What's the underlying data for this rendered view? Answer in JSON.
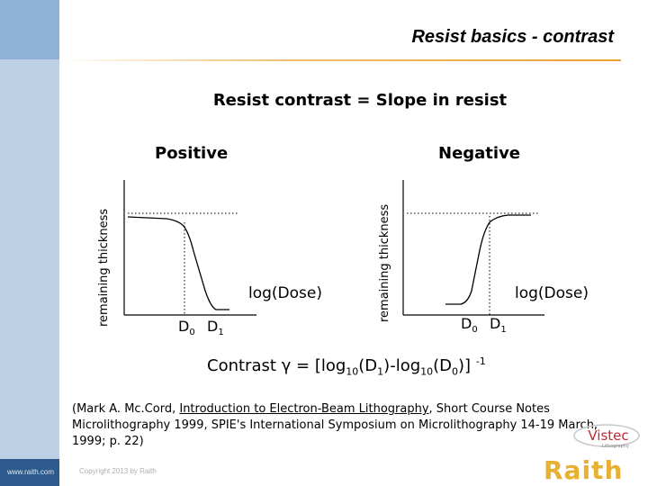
{
  "slide": {
    "title": "Resist basics - contrast",
    "heading": "Resist contrast = Slope in resist",
    "footer_url": "www.raith.com",
    "copyright": "Copyright 2013 by Raith",
    "brand_logo_text": "Raith",
    "partner_logo_text": "Vistec",
    "partner_logo_tagline": "Lithography"
  },
  "diagrams": {
    "positive": {
      "label": "Positive",
      "ylabel": "remaining thickness",
      "xlabel": "log(Dose)",
      "d0": "D",
      "d0_sub": "0",
      "d1": "D",
      "d1_sub": "1"
    },
    "negative": {
      "label": "Negative",
      "ylabel": "remaining thickness",
      "xlabel": "log(Dose)",
      "d0": "D",
      "d0_sub": "0",
      "d1": "D",
      "d1_sub": "1"
    }
  },
  "formula": {
    "prefix": "Contrast γ = [log",
    "sub1": "10",
    "mid1": "(D",
    "sub2": "1",
    "mid2": ")-log",
    "sub3": "10",
    "mid3": "(D",
    "sub4": "0",
    "suffix": ")] ",
    "exp": "-1"
  },
  "citation": {
    "pre": "(Mark A. Mc.Cord, ",
    "link": "Introduction to Electron-Beam Lithography",
    "post": ", Short Course Notes Microlithography 1999, SPIE's International Symposium on Microlithography 14-19 March, 1999; p. 22)"
  },
  "colors": {
    "sidebar": "#bcd0e6",
    "accent": "#e8a030",
    "brand": "#e8b030"
  }
}
